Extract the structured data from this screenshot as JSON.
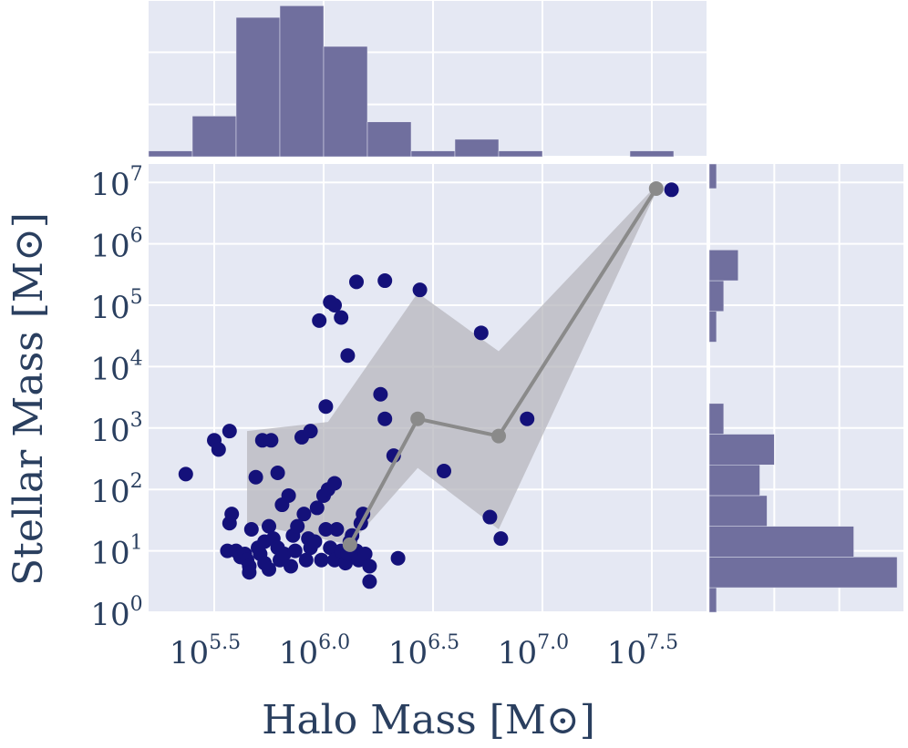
{
  "chart_data": {
    "type": "scatter",
    "xlabel": "Halo Mass [M⊙]",
    "ylabel": "Stellar Mass [M⊙]",
    "x_scale": "log",
    "y_scale": "log",
    "xlim_log10": [
      5.2,
      7.75
    ],
    "ylim_log10": [
      0,
      7.3
    ],
    "x_ticks": [
      {
        "value": 5.5,
        "base": "10",
        "exp": "5.5"
      },
      {
        "value": 6.0,
        "base": "10",
        "exp": "6.0"
      },
      {
        "value": 6.5,
        "base": "10",
        "exp": "6.5"
      },
      {
        "value": 7.0,
        "base": "10",
        "exp": "7.0"
      },
      {
        "value": 7.5,
        "base": "10",
        "exp": "7.5"
      }
    ],
    "y_ticks": [
      {
        "value": 0,
        "base": "10",
        "exp": "0"
      },
      {
        "value": 1,
        "base": "10",
        "exp": "1"
      },
      {
        "value": 2,
        "base": "10",
        "exp": "2"
      },
      {
        "value": 3,
        "base": "10",
        "exp": "3"
      },
      {
        "value": 4,
        "base": "10",
        "exp": "4"
      },
      {
        "value": 5,
        "base": "10",
        "exp": "5"
      },
      {
        "value": 6,
        "base": "10",
        "exp": "6"
      },
      {
        "value": 7,
        "base": "10",
        "exp": "7"
      }
    ],
    "grid": true,
    "colors": {
      "background": "#e5e8f3",
      "grid": "#ffffff",
      "points": "#14117a",
      "median_line": "#8a8a8a",
      "band": "#b7b7bd",
      "histogram": "#706f9e",
      "tick_text": "#2a3f5f"
    },
    "points": [
      [
        5.37,
        2.25
      ],
      [
        5.5,
        2.8
      ],
      [
        5.52,
        2.65
      ],
      [
        5.57,
        2.95
      ],
      [
        5.56,
        1.0
      ],
      [
        5.57,
        1.45
      ],
      [
        5.58,
        1.6
      ],
      [
        5.6,
        1.0
      ],
      [
        5.62,
        0.9
      ],
      [
        5.64,
        0.95
      ],
      [
        5.65,
        0.85
      ],
      [
        5.66,
        0.75
      ],
      [
        5.67,
        1.35
      ],
      [
        5.66,
        0.65
      ],
      [
        5.69,
        2.2
      ],
      [
        5.7,
        1.05
      ],
      [
        5.71,
        0.95
      ],
      [
        5.73,
        0.8
      ],
      [
        5.73,
        1.15
      ],
      [
        5.75,
        0.7
      ],
      [
        5.72,
        2.8
      ],
      [
        5.75,
        1.4
      ],
      [
        5.77,
        1.2
      ],
      [
        5.79,
        1.05
      ],
      [
        5.8,
        0.85
      ],
      [
        5.76,
        2.8
      ],
      [
        5.79,
        2.27
      ],
      [
        5.81,
        1.75
      ],
      [
        5.84,
        1.9
      ],
      [
        5.82,
        0.95
      ],
      [
        5.85,
        0.75
      ],
      [
        5.86,
        1.25
      ],
      [
        5.88,
        1.4
      ],
      [
        5.87,
        1.0
      ],
      [
        5.9,
        2.85
      ],
      [
        5.91,
        1.6
      ],
      [
        5.93,
        1.2
      ],
      [
        5.92,
        0.85
      ],
      [
        5.94,
        1.05
      ],
      [
        5.94,
        2.95
      ],
      [
        5.96,
        1.15
      ],
      [
        5.97,
        1.7
      ],
      [
        5.99,
        0.85
      ],
      [
        6.0,
        1.9
      ],
      [
        6.02,
        2.0
      ],
      [
        6.01,
        1.35
      ],
      [
        6.03,
        1.05
      ],
      [
        6.05,
        2.1
      ],
      [
        6.05,
        0.85
      ],
      [
        6.06,
        1.35
      ],
      [
        6.08,
        1.0
      ],
      [
        6.1,
        0.8
      ],
      [
        6.11,
        0.95
      ],
      [
        6.12,
        1.15
      ],
      [
        6.13,
        1.25
      ],
      [
        6.15,
        1.0
      ],
      [
        6.16,
        0.85
      ],
      [
        6.17,
        1.45
      ],
      [
        6.18,
        1.6
      ],
      [
        6.19,
        0.95
      ],
      [
        6.21,
        0.75
      ],
      [
        6.21,
        0.5
      ],
      [
        6.01,
        3.35
      ],
      [
        5.98,
        4.75
      ],
      [
        6.05,
        5.0
      ],
      [
        6.03,
        5.05
      ],
      [
        6.08,
        4.8
      ],
      [
        6.11,
        4.18
      ],
      [
        6.15,
        5.38
      ],
      [
        6.28,
        5.4
      ],
      [
        6.44,
        5.25
      ],
      [
        6.26,
        3.55
      ],
      [
        6.28,
        3.15
      ],
      [
        6.32,
        2.55
      ],
      [
        6.34,
        0.88
      ],
      [
        6.55,
        2.3
      ],
      [
        6.72,
        4.55
      ],
      [
        6.76,
        1.55
      ],
      [
        6.81,
        1.2
      ],
      [
        6.93,
        3.15
      ],
      [
        7.59,
        6.88
      ]
    ],
    "median_line": [
      [
        6.12,
        1.1
      ],
      [
        6.43,
        3.15
      ],
      [
        6.8,
        2.87
      ],
      [
        7.52,
        6.9
      ]
    ],
    "band": {
      "upper": [
        [
          5.65,
          2.95
        ],
        [
          6.02,
          3.1
        ],
        [
          6.43,
          5.2
        ],
        [
          6.8,
          4.25
        ],
        [
          7.52,
          6.95
        ]
      ],
      "lower": [
        [
          5.65,
          1.45
        ],
        [
          6.12,
          1.1
        ],
        [
          6.43,
          2.35
        ],
        [
          6.8,
          1.35
        ],
        [
          7.52,
          6.85
        ]
      ]
    },
    "top_histogram": {
      "bin_edges_log10": [
        5.2,
        5.4,
        5.6,
        5.8,
        6.0,
        6.2,
        6.4,
        6.6,
        6.8,
        7.0,
        7.2,
        7.4,
        7.6
      ],
      "counts": [
        1,
        7,
        24,
        26,
        19,
        6,
        1,
        3,
        1,
        0,
        0,
        1
      ],
      "count_range": [
        0,
        27
      ],
      "count_grid": [
        0,
        9,
        18,
        27
      ]
    },
    "right_histogram": {
      "bin_edges_log10": [
        -0.1,
        0.4,
        0.9,
        1.4,
        1.9,
        2.4,
        2.9,
        3.4,
        3.9,
        4.4,
        4.9,
        5.4,
        5.9,
        6.4,
        6.9,
        7.4
      ],
      "counts": [
        1,
        26,
        20,
        8,
        7,
        9,
        2,
        0,
        0,
        1,
        2,
        4,
        0,
        0,
        1
      ],
      "count_range": [
        0,
        27
      ],
      "count_grid": [
        0,
        9,
        18,
        27
      ]
    }
  }
}
